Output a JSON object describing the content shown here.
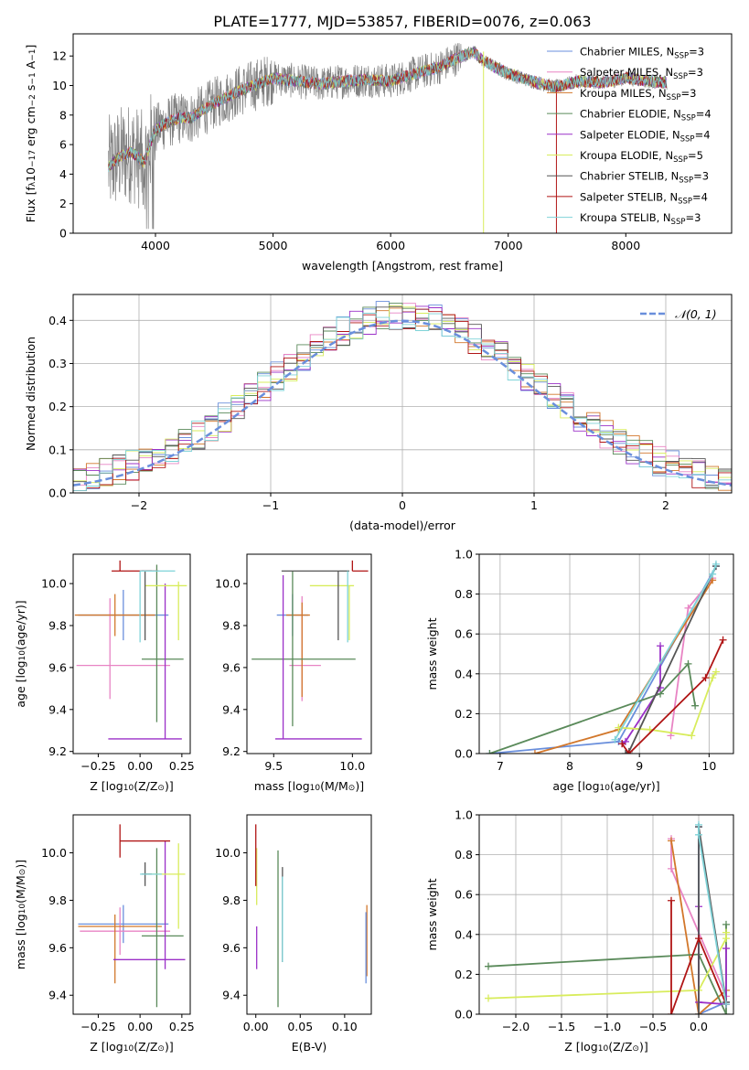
{
  "figure_title": "PLATE=1777, MJD=53857, FIBERID=0076, z=0.063",
  "colors": {
    "Chabrier MILES": "#6a8fdc",
    "Salpeter MILES": "#e884c4",
    "Kroupa MILES": "#d2772b",
    "Chabrier ELODIE": "#5a8a5a",
    "Salpeter ELODIE": "#9b30c8",
    "Kroupa ELODIE": "#d8ec5c",
    "Chabrier STELIB": "#555555",
    "Salpeter STELIB": "#b01515",
    "Kroupa STELIB": "#7fd3d8",
    "data": "#808080",
    "normal": "#6a8fdc"
  },
  "chart_data": [
    {
      "type": "line",
      "title": "PLATE=1777, MJD=53857, FIBERID=0076, z=0.063",
      "xlabel": "wavelength [Angstrom, rest frame]",
      "ylabel_parts": [
        "Flux [f",
        "λ",
        "10",
        "−17",
        " erg cm",
        "−2",
        " s",
        "−1",
        " A",
        "−1",
        "]"
      ],
      "xlim": [
        3300,
        8900
      ],
      "ylim": [
        0,
        13.5
      ],
      "xticks": [
        4000,
        5000,
        6000,
        7000,
        8000
      ],
      "yticks": [
        0,
        2,
        4,
        6,
        8,
        10,
        12
      ],
      "grid": false,
      "legend_placement": "right",
      "continuum_knots": {
        "x": [
          3600,
          3700,
          3800,
          3900,
          4000,
          4100,
          4200,
          4300,
          4500,
          4700,
          4900,
          5000,
          5200,
          5400,
          5600,
          5800,
          6000,
          6200,
          6400,
          6550,
          6700,
          6800,
          7000,
          7200,
          7400,
          7600,
          7800,
          8000,
          8200,
          8300
        ],
        "y": [
          4.5,
          5.2,
          5.5,
          4.8,
          7.0,
          7.5,
          7.8,
          7.8,
          8.8,
          9.6,
          10.2,
          10.5,
          10.3,
          10.1,
          10.3,
          10.4,
          10.3,
          10.8,
          11.2,
          11.8,
          12.3,
          11.6,
          10.8,
          10.3,
          9.9,
          10.3,
          10.2,
          10.5,
          10.3,
          10.2
        ]
      },
      "series": [
        {
          "name": "Chabrier MILES",
          "label_base": "Chabrier MILES, N",
          "sub": "SSP",
          "value": "=3"
        },
        {
          "name": "Salpeter MILES",
          "label_base": "Salpeter MILES, N",
          "sub": "SSP",
          "value": "=3"
        },
        {
          "name": "Kroupa MILES",
          "label_base": "Kroupa MILES, N",
          "sub": "SSP",
          "value": "=3"
        },
        {
          "name": "Chabrier ELODIE",
          "label_base": "Chabrier ELODIE, N",
          "sub": "SSP",
          "value": "=4"
        },
        {
          "name": "Salpeter ELODIE",
          "label_base": "Salpeter ELODIE, N",
          "sub": "SSP",
          "value": "=4"
        },
        {
          "name": "Kroupa ELODIE",
          "label_base": "Kroupa ELODIE, N",
          "sub": "SSP",
          "value": "=5"
        },
        {
          "name": "Chabrier STELIB",
          "label_base": "Chabrier STELIB, N",
          "sub": "SSP",
          "value": "=3"
        },
        {
          "name": "Salpeter STELIB",
          "label_base": "Salpeter STELIB, N",
          "sub": "SSP",
          "value": "=4"
        },
        {
          "name": "Kroupa STELIB",
          "label_base": "Kroupa STELIB, N",
          "sub": "SSP",
          "value": "=3"
        }
      ]
    },
    {
      "type": "step",
      "xlabel": "(data-model)/error",
      "ylabel": "Normed distribution",
      "xlim": [
        -2.5,
        2.5
      ],
      "ylim": [
        0,
        0.46
      ],
      "xticks": [
        -2,
        -1,
        0,
        1,
        2
      ],
      "yticks": [
        0.0,
        0.1,
        0.2,
        0.3,
        0.4
      ],
      "grid": true,
      "legend_placement": "top-right",
      "legend_label": "𝒩(0, 1)",
      "bin_edges_range": [
        -2.5,
        2.5
      ],
      "n_bins": 50
    },
    {
      "type": "errorbar",
      "xlabel_parts": [
        "Z [log",
        "10",
        "(Z/Z",
        "⊙",
        ")]"
      ],
      "ylabel_parts": [
        "age  [log",
        "10",
        "(age/yr)]"
      ],
      "xlim": [
        -0.4,
        0.3
      ],
      "ylim": [
        9.19,
        10.14
      ],
      "xticks": [
        -0.25,
        0.0,
        0.25
      ],
      "yticks": [
        9.2,
        9.4,
        9.6,
        9.8,
        10.0
      ],
      "points": [
        {
          "name": "Chabrier MILES",
          "x": -0.1,
          "xerr": [
            0.27,
            0.27
          ],
          "y": 9.85,
          "yerr": [
            0.12,
            0.12
          ]
        },
        {
          "name": "Salpeter MILES",
          "x": -0.18,
          "xerr": [
            0.2,
            0.36
          ],
          "y": 9.61,
          "yerr": [
            0.16,
            0.32
          ]
        },
        {
          "name": "Kroupa MILES",
          "x": -0.15,
          "xerr": [
            0.24,
            0.24
          ],
          "y": 9.85,
          "yerr": [
            0.1,
            0.1
          ]
        },
        {
          "name": "Chabrier ELODIE",
          "x": 0.1,
          "xerr": [
            0.09,
            0.16
          ],
          "y": 9.64,
          "yerr": [
            0.3,
            0.45
          ]
        },
        {
          "name": "Salpeter ELODIE",
          "x": 0.15,
          "xerr": [
            0.34,
            0.1
          ],
          "y": 9.26,
          "yerr": [
            0.0,
            0.74
          ]
        },
        {
          "name": "Kroupa ELODIE",
          "x": 0.23,
          "xerr": [
            0.2,
            0.05
          ],
          "y": 9.99,
          "yerr": [
            0.26,
            0.02
          ]
        },
        {
          "name": "Chabrier STELIB",
          "x": 0.03,
          "xerr": [
            0.02,
            0.04
          ],
          "y": 10.06,
          "yerr": [
            0.33,
            0.0
          ]
        },
        {
          "name": "Salpeter STELIB",
          "x": -0.12,
          "xerr": [
            0.05,
            0.23
          ],
          "y": 10.06,
          "yerr": [
            0.0,
            0.05
          ]
        },
        {
          "name": "Kroupa STELIB",
          "x": 0.0,
          "xerr": [
            0.0,
            0.21
          ],
          "y": 10.06,
          "yerr": [
            0.34,
            0.0
          ]
        }
      ]
    },
    {
      "type": "errorbar",
      "xlabel_parts": [
        "mass [log",
        "10",
        "(M/M",
        "⊙",
        ")]"
      ],
      "xlim": [
        9.33,
        10.12
      ],
      "ylim": [
        9.19,
        10.14
      ],
      "xticks": [
        9.5,
        10.0
      ],
      "yticks": [
        9.2,
        9.4,
        9.6,
        9.8,
        10.0
      ],
      "points": [
        {
          "name": "Chabrier MILES",
          "x": 9.62,
          "xerr": [
            0.1,
            0.1
          ],
          "y": 9.85,
          "yerr": [
            0.1,
            0.1
          ]
        },
        {
          "name": "Salpeter MILES",
          "x": 9.68,
          "xerr": [
            0.08,
            0.12
          ],
          "y": 9.61,
          "yerr": [
            0.17,
            0.33
          ]
        },
        {
          "name": "Kroupa MILES",
          "x": 9.68,
          "xerr": [
            0.1,
            0.05
          ],
          "y": 9.85,
          "yerr": [
            0.39,
            0.06
          ]
        },
        {
          "name": "Chabrier ELODIE",
          "x": 9.62,
          "xerr": [
            0.26,
            0.4
          ],
          "y": 9.64,
          "yerr": [
            0.32,
            0.42
          ]
        },
        {
          "name": "Salpeter ELODIE",
          "x": 9.56,
          "xerr": [
            0.05,
            0.5
          ],
          "y": 9.26,
          "yerr": [
            0.0,
            0.78
          ]
        },
        {
          "name": "Kroupa ELODIE",
          "x": 9.98,
          "xerr": [
            0.25,
            0.03
          ],
          "y": 9.99,
          "yerr": [
            0.26,
            0.0
          ]
        },
        {
          "name": "Chabrier STELIB",
          "x": 9.91,
          "xerr": [
            0.36,
            0.07
          ],
          "y": 10.06,
          "yerr": [
            0.33,
            0.0
          ]
        },
        {
          "name": "Salpeter STELIB",
          "x": 10.0,
          "xerr": [
            0.0,
            0.1
          ],
          "y": 10.06,
          "yerr": [
            0.0,
            0.05
          ]
        },
        {
          "name": "Kroupa STELIB",
          "x": 9.97,
          "xerr": [
            0.0,
            0.0
          ],
          "y": 10.06,
          "yerr": [
            0.34,
            0.0
          ]
        }
      ]
    },
    {
      "type": "line",
      "xlabel_parts": [
        "age  [log",
        "10",
        "(age/yr)]"
      ],
      "ylabel": "mass weight",
      "xlim": [
        6.7,
        10.35
      ],
      "ylim": [
        0,
        1.0
      ],
      "xticks": [
        7,
        8,
        9,
        10
      ],
      "yticks": [
        0.0,
        0.2,
        0.4,
        0.6,
        0.8,
        1.0
      ],
      "grid": true,
      "series": [
        {
          "name": "Chabrier MILES",
          "x": [
            6.85,
            8.7,
            10.1
          ],
          "y": [
            0.0,
            0.06,
            0.94
          ]
        },
        {
          "name": "Salpeter MILES",
          "x": [
            9.45,
            9.7,
            10.05
          ],
          "y": [
            0.09,
            0.73,
            0.88
          ]
        },
        {
          "name": "Kroupa MILES",
          "x": [
            7.5,
            8.7,
            10.05
          ],
          "y": [
            0.0,
            0.12,
            0.87
          ]
        },
        {
          "name": "Chabrier ELODIE",
          "x": [
            6.85,
            9.3,
            9.7,
            9.8
          ],
          "y": [
            0.0,
            0.3,
            0.45,
            0.24
          ]
        },
        {
          "name": "Salpeter ELODIE",
          "x": [
            8.75,
            8.8,
            9.3,
            9.3
          ],
          "y": [
            0.05,
            0.06,
            0.33,
            0.54
          ]
        },
        {
          "name": "Kroupa ELODIE",
          "x": [
            8.7,
            9.15,
            9.75,
            10.05,
            10.1
          ],
          "y": [
            0.13,
            0.12,
            0.09,
            0.38,
            0.41
          ]
        },
        {
          "name": "Chabrier STELIB",
          "x": [
            8.8,
            8.85,
            10.1
          ],
          "y": [
            0.0,
            0.01,
            0.94
          ]
        },
        {
          "name": "Salpeter STELIB",
          "x": [
            8.75,
            8.85,
            9.95,
            10.2
          ],
          "y": [
            0.05,
            0.0,
            0.38,
            0.57
          ]
        },
        {
          "name": "Kroupa STELIB",
          "x": [
            8.65,
            10.05,
            10.1
          ],
          "y": [
            0.07,
            0.9,
            0.95
          ]
        }
      ]
    },
    {
      "type": "errorbar",
      "xlabel_parts": [
        "Z [log",
        "10",
        "(Z/Z",
        "⊙",
        ")]"
      ],
      "ylabel_parts": [
        "mass [log",
        "10",
        "(M/M",
        "⊙",
        ")]"
      ],
      "xlim": [
        -0.4,
        0.3
      ],
      "ylim": [
        9.32,
        10.16
      ],
      "xticks": [
        -0.25,
        0.0,
        0.25
      ],
      "yticks": [
        9.4,
        9.6,
        9.8,
        10.0
      ],
      "points": [
        {
          "name": "Chabrier MILES",
          "x": -0.1,
          "xerr": [
            0.27,
            0.27
          ],
          "y": 9.7,
          "yerr": [
            0.08,
            0.08
          ]
        },
        {
          "name": "Salpeter MILES",
          "x": -0.12,
          "xerr": [
            0.24,
            0.3
          ],
          "y": 9.67,
          "yerr": [
            0.1,
            0.1
          ]
        },
        {
          "name": "Kroupa MILES",
          "x": -0.15,
          "xerr": [
            0.22,
            0.28
          ],
          "y": 9.69,
          "yerr": [
            0.24,
            0.05
          ]
        },
        {
          "name": "Chabrier ELODIE",
          "x": 0.1,
          "xerr": [
            0.09,
            0.16
          ],
          "y": 9.65,
          "yerr": [
            0.3,
            0.37
          ]
        },
        {
          "name": "Salpeter ELODIE",
          "x": 0.15,
          "xerr": [
            0.31,
            0.12
          ],
          "y": 9.55,
          "yerr": [
            0.04,
            0.5
          ]
        },
        {
          "name": "Kroupa ELODIE",
          "x": 0.23,
          "xerr": [
            0.2,
            0.04
          ],
          "y": 9.91,
          "yerr": [
            0.23,
            0.13
          ]
        },
        {
          "name": "Chabrier STELIB",
          "x": 0.03,
          "xerr": [
            0.02,
            0.04
          ],
          "y": 9.91,
          "yerr": [
            0.05,
            0.05
          ]
        },
        {
          "name": "Salpeter STELIB",
          "x": -0.12,
          "xerr": [
            0.0,
            0.3
          ],
          "y": 10.05,
          "yerr": [
            0.07,
            0.07
          ]
        },
        {
          "name": "Kroupa STELIB",
          "x": 0.0,
          "xerr": [
            0.0,
            0.13
          ],
          "y": 9.91,
          "yerr": [
            0.0,
            0.0
          ]
        }
      ]
    },
    {
      "type": "errorbar",
      "xlabel": "E(B-V)",
      "xlim": [
        -0.01,
        0.13
      ],
      "ylim": [
        9.32,
        10.16
      ],
      "xticks": [
        0.0,
        0.05,
        0.1
      ],
      "yticks": [
        9.4,
        9.6,
        9.8,
        10.0
      ],
      "points": [
        {
          "name": "Kroupa MILES",
          "x": 0.125,
          "xerr": [
            0,
            0
          ],
          "y": 9.63,
          "yerr": [
            0.15,
            0.15
          ]
        },
        {
          "name": "Chabrier MILES",
          "x": 0.124,
          "xerr": [
            0,
            0
          ],
          "y": 9.6,
          "yerr": [
            0.15,
            0.15
          ]
        },
        {
          "name": "Chabrier ELODIE",
          "x": 0.025,
          "xerr": [
            0,
            0
          ],
          "y": 9.68,
          "yerr": [
            0.33,
            0.33
          ]
        },
        {
          "name": "Salpeter ELODIE",
          "x": 0.001,
          "xerr": [
            0,
            0
          ],
          "y": 9.6,
          "yerr": [
            0.09,
            0.09
          ]
        },
        {
          "name": "Kroupa ELODIE",
          "x": 0.001,
          "xerr": [
            0,
            0
          ],
          "y": 9.9,
          "yerr": [
            0.12,
            0.12
          ]
        },
        {
          "name": "Salpeter STELIB",
          "x": 0.0,
          "xerr": [
            0,
            0
          ],
          "y": 9.99,
          "yerr": [
            0.13,
            0.13
          ]
        },
        {
          "name": "Chabrier STELIB",
          "x": 0.03,
          "xerr": [
            0,
            0
          ],
          "y": 9.74,
          "yerr": [
            0.2,
            0.2
          ]
        },
        {
          "name": "Kroupa STELIB",
          "x": 0.03,
          "xerr": [
            0,
            0
          ],
          "y": 9.72,
          "yerr": [
            0.18,
            0.18
          ]
        }
      ]
    },
    {
      "type": "line",
      "xlabel_parts": [
        "Z [log",
        "10",
        "(Z/Z",
        "⊙",
        ")]"
      ],
      "ylabel": "mass weight",
      "xlim": [
        -2.4,
        0.38
      ],
      "ylim": [
        0,
        1.0
      ],
      "xticks": [
        -2.0,
        -1.5,
        -1.0,
        -0.5,
        0.0
      ],
      "yticks": [
        0.0,
        0.2,
        0.4,
        0.6,
        0.8,
        1.0
      ],
      "grid": true,
      "series": [
        {
          "name": "Chabrier MILES",
          "x": [
            0.3,
            0.0,
            0.0
          ],
          "y": [
            0.06,
            0.0,
            0.94
          ]
        },
        {
          "name": "Salpeter MILES",
          "x": [
            -0.3,
            -0.3,
            0.3
          ],
          "y": [
            0.88,
            0.73,
            0.09
          ]
        },
        {
          "name": "Kroupa MILES",
          "x": [
            -0.3,
            0.0,
            0.3
          ],
          "y": [
            0.87,
            0.0,
            0.12
          ]
        },
        {
          "name": "Chabrier ELODIE",
          "x": [
            -2.3,
            0.0,
            0.3,
            0.3
          ],
          "y": [
            0.24,
            0.3,
            0.0,
            0.45
          ]
        },
        {
          "name": "Salpeter ELODIE",
          "x": [
            0.0,
            0.0,
            0.3,
            0.3
          ],
          "y": [
            0.54,
            0.06,
            0.05,
            0.33
          ]
        },
        {
          "name": "Kroupa ELODIE",
          "x": [
            -2.3,
            0.0,
            0.3,
            0.3
          ],
          "y": [
            0.08,
            0.12,
            0.38,
            0.41
          ]
        },
        {
          "name": "Chabrier STELIB",
          "x": [
            0.0,
            0.0,
            0.3
          ],
          "y": [
            0.0,
            0.94,
            0.06
          ]
        },
        {
          "name": "Salpeter STELIB",
          "x": [
            -0.3,
            -0.3,
            0.0,
            0.3
          ],
          "y": [
            0.57,
            0.0,
            0.38,
            0.05
          ]
        },
        {
          "name": "Kroupa STELIB",
          "x": [
            0.0,
            0.0,
            0.3
          ],
          "y": [
            0.95,
            0.9,
            0.05
          ]
        }
      ]
    }
  ]
}
